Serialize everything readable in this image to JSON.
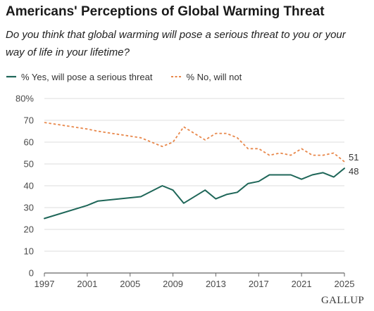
{
  "title": "Americans' Perceptions of Global Warming Threat",
  "subtitle": "Do you think that global warming will pose a serious threat to you or your way of life in your lifetime?",
  "brand": "GALLUP",
  "colors": {
    "yes": "#1e6658",
    "no": "#e8874a",
    "grid": "#dcdcdc",
    "axis": "#666666"
  },
  "chart_data": {
    "type": "line",
    "title": "Americans' Perceptions of Global Warming Threat",
    "xlabel": "",
    "ylabel": "",
    "xlim": [
      1997,
      2025
    ],
    "ylim": [
      0,
      80
    ],
    "x_ticks": [
      1997,
      2001,
      2005,
      2009,
      2013,
      2017,
      2021,
      2025
    ],
    "y_ticks": [
      0,
      10,
      20,
      30,
      40,
      50,
      60,
      70,
      80
    ],
    "y_tick_labels": [
      "0",
      "10",
      "20",
      "30",
      "40",
      "50",
      "60",
      "70",
      "80%"
    ],
    "grid": true,
    "legend_position": "top-left",
    "series": [
      {
        "name": "% Yes, will pose a serious threat",
        "style": "solid",
        "color": "#1e6658",
        "x": [
          1997,
          2001,
          2002,
          2006,
          2008,
          2009,
          2010,
          2012,
          2013,
          2014,
          2015,
          2016,
          2017,
          2018,
          2019,
          2020,
          2021,
          2022,
          2023,
          2024,
          2025
        ],
        "values": [
          25,
          31,
          33,
          35,
          40,
          38,
          32,
          38,
          34,
          36,
          37,
          41,
          42,
          45,
          45,
          45,
          43,
          45,
          46,
          44,
          48
        ],
        "end_label": "48"
      },
      {
        "name": "% No, will not",
        "style": "dashed",
        "color": "#e8874a",
        "x": [
          1997,
          2001,
          2002,
          2006,
          2008,
          2009,
          2010,
          2012,
          2013,
          2014,
          2015,
          2016,
          2017,
          2018,
          2019,
          2020,
          2021,
          2022,
          2023,
          2024,
          2025
        ],
        "values": [
          69,
          66,
          65,
          62,
          58,
          60,
          67,
          61,
          64,
          64,
          62,
          57,
          57,
          54,
          55,
          54,
          57,
          54,
          54,
          55,
          51
        ],
        "end_label": "51"
      }
    ]
  }
}
